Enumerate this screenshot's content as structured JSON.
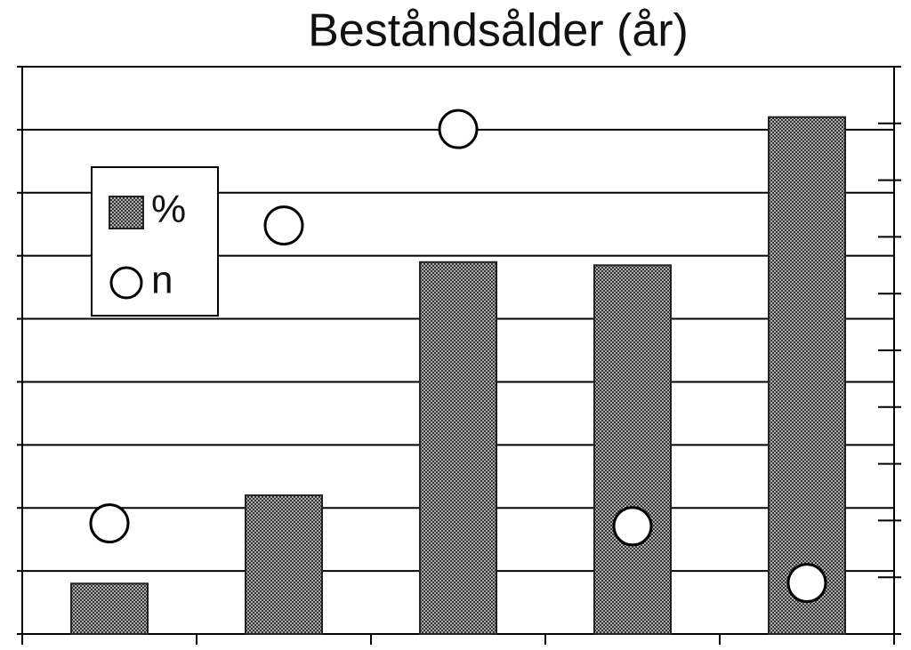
{
  "chart_data": {
    "type": "bar",
    "title": "Beståndsålder (år)",
    "categories": [
      null,
      null,
      null,
      null,
      null
    ],
    "series": [
      {
        "name": "%",
        "type": "bar",
        "color": "#8a8a8a",
        "values": [
          0.8,
          2.2,
          5.9,
          5.85,
          8.2
        ]
      },
      {
        "name": "n",
        "type": "scatter",
        "axis": "y2",
        "color": "#ffffff",
        "values": [
          1.95,
          7.2,
          8.9,
          1.9,
          0.9
        ]
      }
    ],
    "ylim": [
      0,
      9
    ],
    "yticks": [
      0,
      1,
      2,
      3,
      4,
      5,
      6,
      7,
      8,
      9
    ],
    "y2lim": [
      0,
      10
    ],
    "y2ticks": [
      0,
      1,
      2,
      3,
      4,
      5,
      6,
      7,
      8,
      9,
      10
    ],
    "grid": true,
    "legend": "upper left"
  }
}
